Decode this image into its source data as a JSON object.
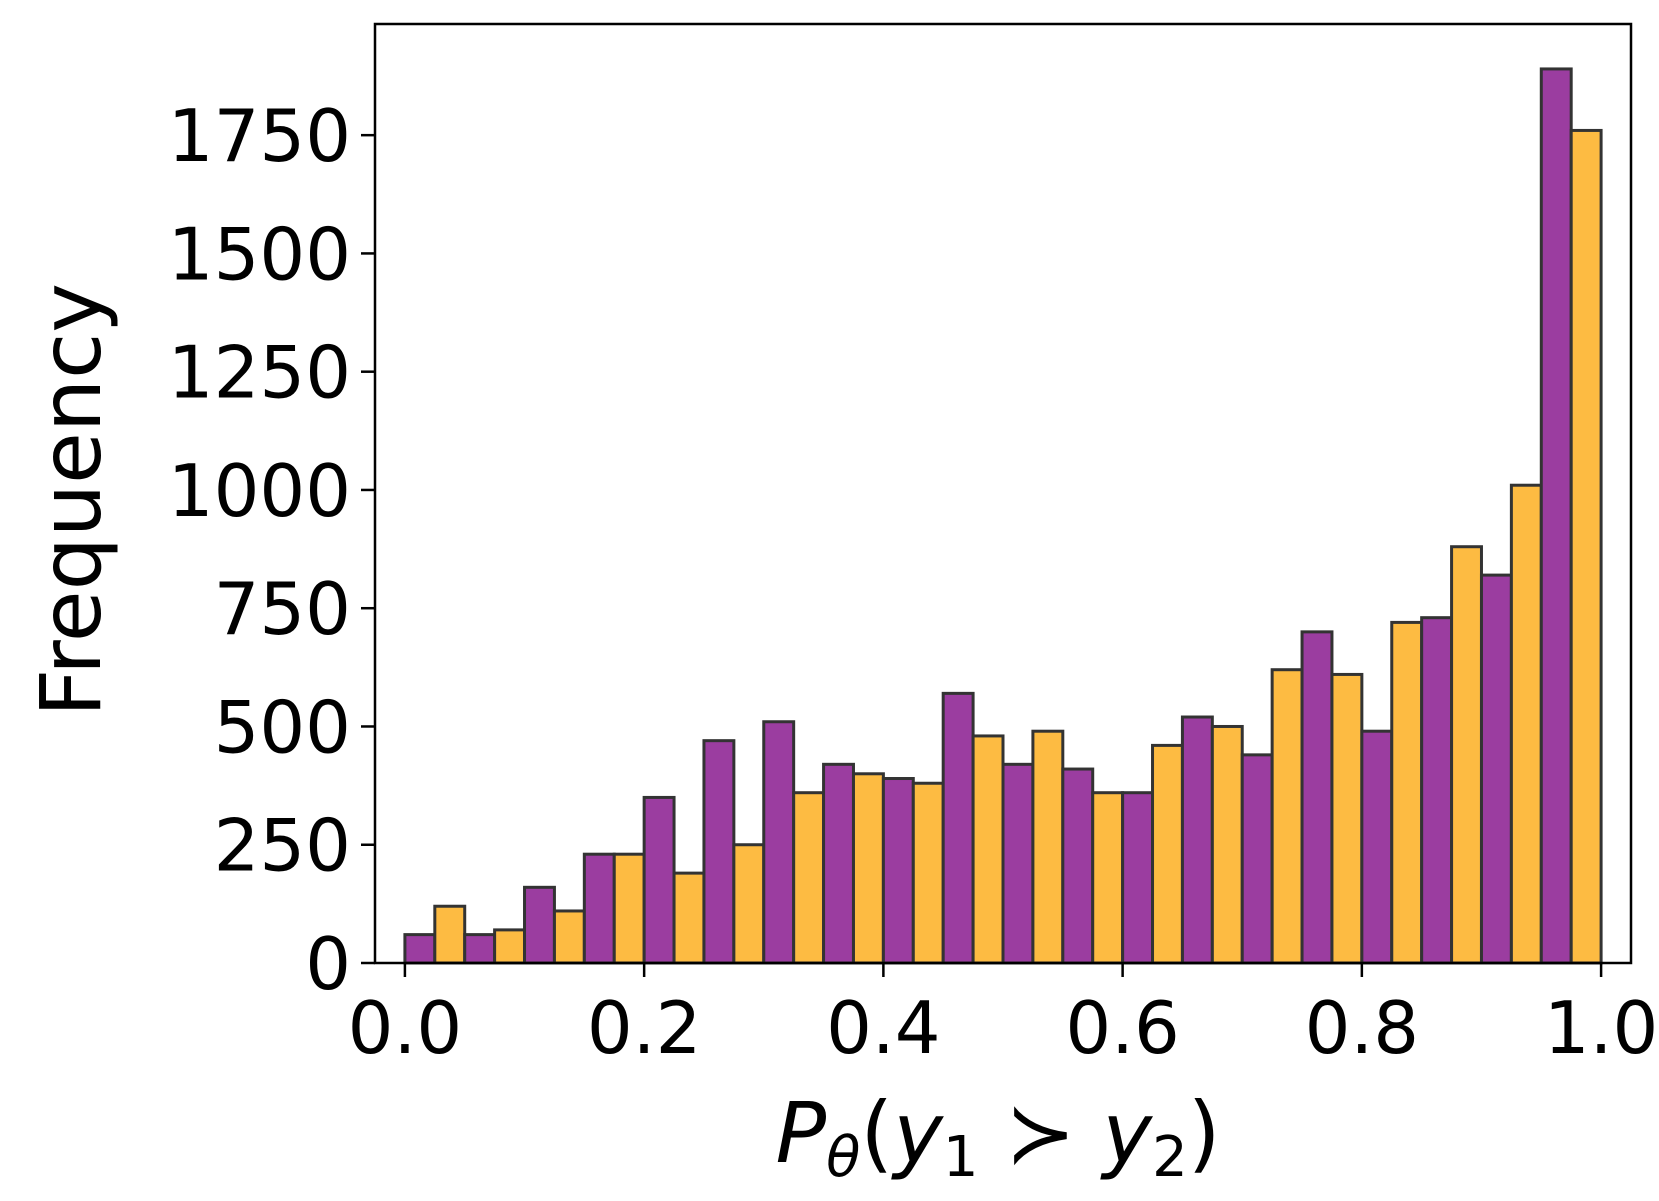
{
  "chart_data": {
    "type": "bar",
    "xlabel_parts": {
      "p": "P",
      "theta": "θ",
      "open": "(",
      "y1": "y",
      "sub1": "1",
      "succ": " ≻ ",
      "y2": "y",
      "sub2": "2",
      "close": ")"
    },
    "ylabel": "Frequency",
    "xlim": [
      -0.025,
      1.025
    ],
    "ylim": [
      0,
      1985
    ],
    "xticks": [
      "0.0",
      "0.2",
      "0.4",
      "0.6",
      "0.8",
      "1.0"
    ],
    "xtick_values": [
      0.0,
      0.2,
      0.4,
      0.6,
      0.8,
      1.0
    ],
    "yticks": [
      "0",
      "250",
      "500",
      "750",
      "1000",
      "1250",
      "1500",
      "1750"
    ],
    "ytick_values": [
      0,
      250,
      500,
      750,
      1000,
      1250,
      1500,
      1750
    ],
    "bin_width": 0.025,
    "colors": {
      "series_a": "#9b3da0",
      "series_b": "#fdbb42",
      "edge": "#333333"
    },
    "bins": [
      {
        "x": 0.0,
        "value": 60,
        "series": "a"
      },
      {
        "x": 0.025,
        "value": 120,
        "series": "b"
      },
      {
        "x": 0.05,
        "value": 60,
        "series": "a"
      },
      {
        "x": 0.075,
        "value": 70,
        "series": "b"
      },
      {
        "x": 0.1,
        "value": 160,
        "series": "a"
      },
      {
        "x": 0.125,
        "value": 110,
        "series": "b"
      },
      {
        "x": 0.15,
        "value": 230,
        "series": "a"
      },
      {
        "x": 0.175,
        "value": 230,
        "series": "b"
      },
      {
        "x": 0.2,
        "value": 350,
        "series": "a"
      },
      {
        "x": 0.225,
        "value": 190,
        "series": "b"
      },
      {
        "x": 0.25,
        "value": 470,
        "series": "a"
      },
      {
        "x": 0.275,
        "value": 250,
        "series": "b"
      },
      {
        "x": 0.3,
        "value": 510,
        "series": "a"
      },
      {
        "x": 0.325,
        "value": 360,
        "series": "b"
      },
      {
        "x": 0.35,
        "value": 420,
        "series": "a"
      },
      {
        "x": 0.375,
        "value": 400,
        "series": "b"
      },
      {
        "x": 0.4,
        "value": 390,
        "series": "a"
      },
      {
        "x": 0.425,
        "value": 380,
        "series": "b"
      },
      {
        "x": 0.45,
        "value": 570,
        "series": "a"
      },
      {
        "x": 0.475,
        "value": 480,
        "series": "b"
      },
      {
        "x": 0.5,
        "value": 420,
        "series": "a"
      },
      {
        "x": 0.525,
        "value": 490,
        "series": "b"
      },
      {
        "x": 0.55,
        "value": 410,
        "series": "a"
      },
      {
        "x": 0.575,
        "value": 360,
        "series": "b"
      },
      {
        "x": 0.6,
        "value": 360,
        "series": "a"
      },
      {
        "x": 0.625,
        "value": 460,
        "series": "b"
      },
      {
        "x": 0.65,
        "value": 520,
        "series": "a"
      },
      {
        "x": 0.675,
        "value": 500,
        "series": "b"
      },
      {
        "x": 0.7,
        "value": 440,
        "series": "a"
      },
      {
        "x": 0.725,
        "value": 620,
        "series": "b"
      },
      {
        "x": 0.75,
        "value": 700,
        "series": "a"
      },
      {
        "x": 0.775,
        "value": 610,
        "series": "b"
      },
      {
        "x": 0.8,
        "value": 490,
        "series": "a"
      },
      {
        "x": 0.825,
        "value": 720,
        "series": "b"
      },
      {
        "x": 0.85,
        "value": 730,
        "series": "a"
      },
      {
        "x": 0.875,
        "value": 880,
        "series": "b"
      },
      {
        "x": 0.9,
        "value": 820,
        "series": "a"
      },
      {
        "x": 0.925,
        "value": 1010,
        "series": "b"
      },
      {
        "x": 0.95,
        "value": 1890,
        "series": "a"
      },
      {
        "x": 0.975,
        "value": 1760,
        "series": "b"
      }
    ],
    "grid": false,
    "legend": "none"
  }
}
